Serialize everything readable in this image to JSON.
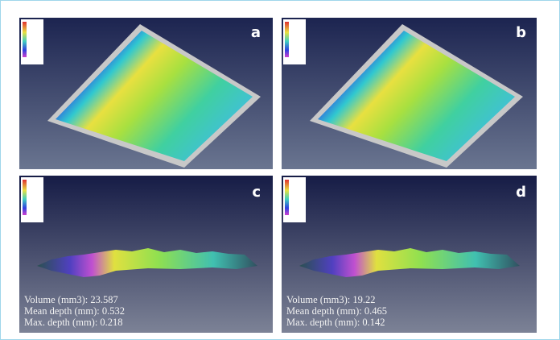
{
  "panels": [
    {
      "label": "a"
    },
    {
      "label": "b"
    },
    {
      "label": "c",
      "lines": [
        "Volume (mm3): 23.587",
        "Mean depth (mm): 0.532",
        "Max. depth (mm): 0.218"
      ]
    },
    {
      "label": "d",
      "lines": [
        "Volume (mm3): 19.22",
        "Mean depth (mm): 0.465",
        "Max. depth (mm): 0.142"
      ]
    }
  ]
}
